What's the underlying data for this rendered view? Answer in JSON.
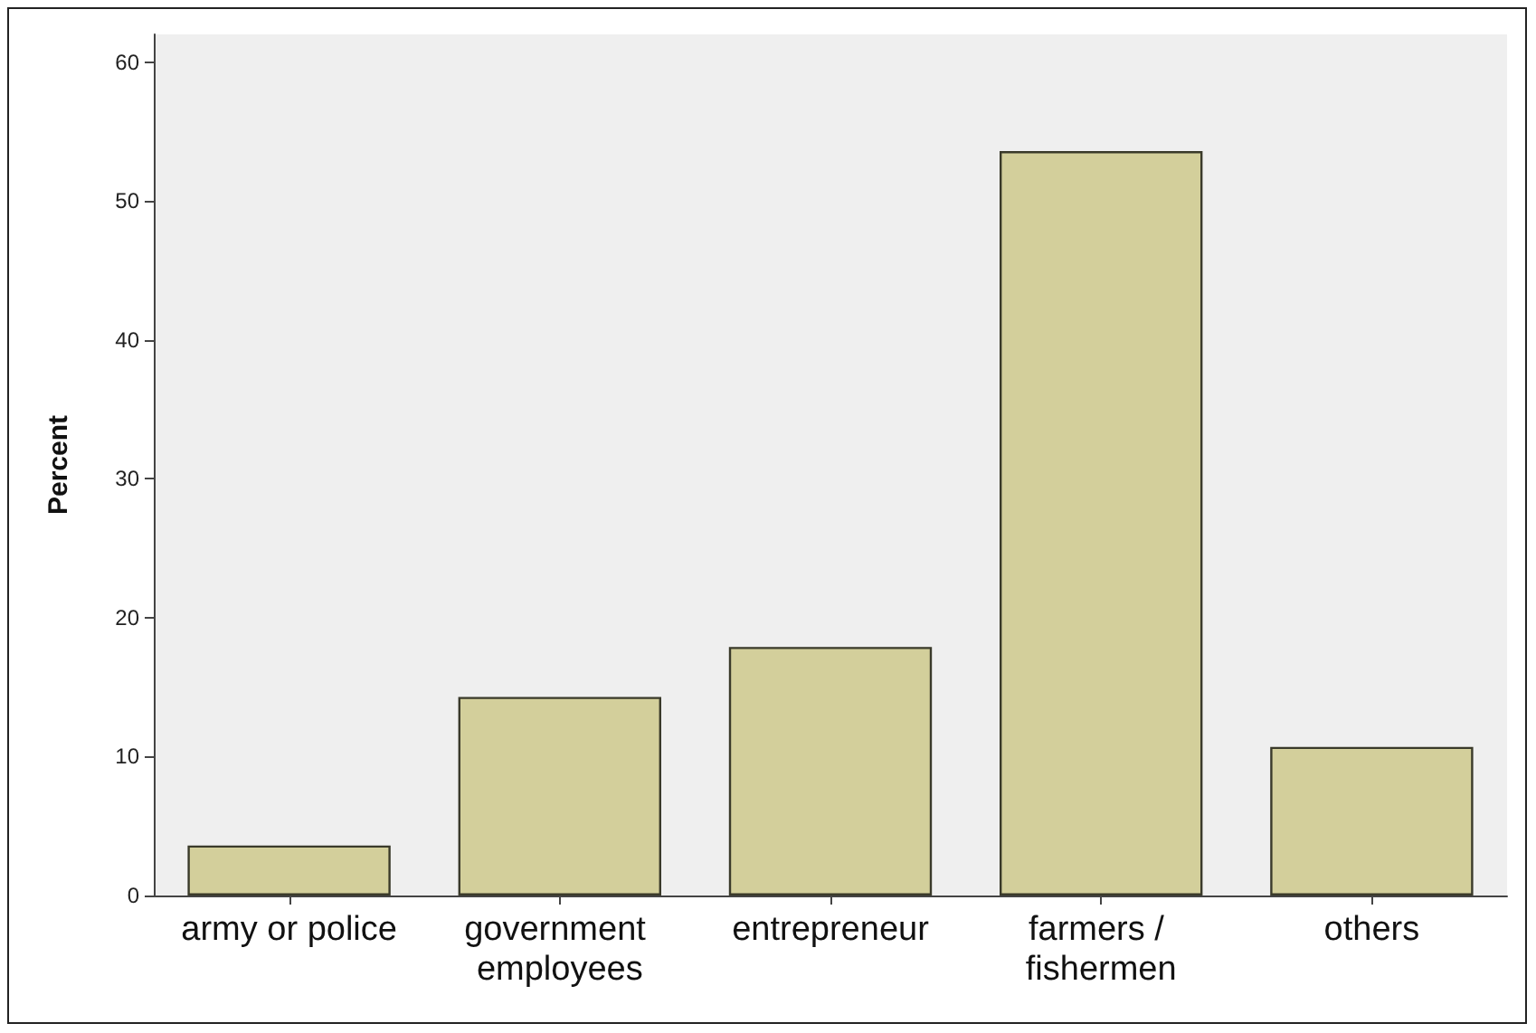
{
  "chart_data": {
    "type": "bar",
    "ylabel": "Percent",
    "categories": [
      "army or police",
      "government employees",
      "entrepreneur",
      "farmers / fishermen",
      "others"
    ],
    "values": [
      3.6,
      14.3,
      17.9,
      53.6,
      10.7
    ],
    "color": "#d3cf9b",
    "ylim": [
      0,
      62
    ],
    "yticks": [
      0,
      10,
      20,
      30,
      40,
      50,
      60
    ],
    "grid": false
  }
}
